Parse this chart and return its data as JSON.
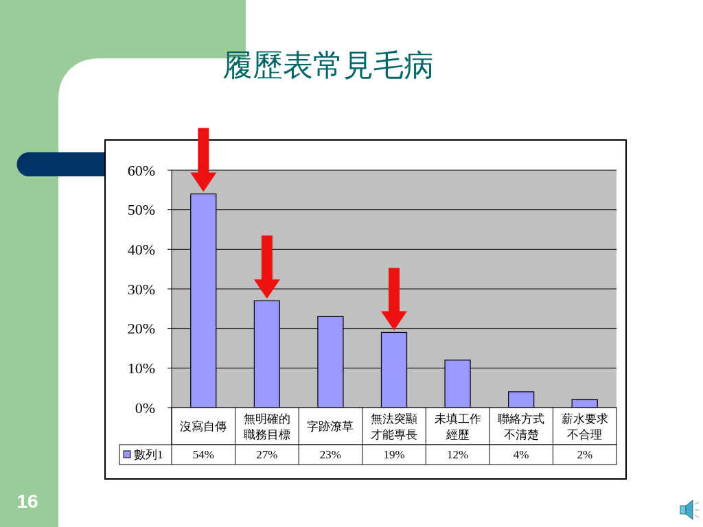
{
  "chart_data": {
    "type": "bar",
    "title": "履歷表常見毛病",
    "categories": [
      "沒寫自傳",
      "無明確的職務目標",
      "字跡潦草",
      "無法突顯才能專長",
      "未填工作經歷",
      "聯絡方式不清楚",
      "薪水要求不合理"
    ],
    "series": [
      {
        "name": "數列1",
        "color": "#9999ff",
        "values": [
          54,
          27,
          23,
          19,
          12,
          4,
          2
        ],
        "value_labels": [
          "54%",
          "27%",
          "23%",
          "19%",
          "12%",
          "4%",
          "2%"
        ]
      }
    ],
    "ylim": [
      0,
      60
    ],
    "yticks": [
      {
        "value": 0,
        "label": "0%"
      },
      {
        "value": 10,
        "label": "10%"
      },
      {
        "value": 20,
        "label": "20%"
      },
      {
        "value": 30,
        "label": "30%"
      },
      {
        "value": 40,
        "label": "40%"
      },
      {
        "value": 50,
        "label": "50%"
      },
      {
        "value": 60,
        "label": "60%"
      }
    ],
    "grid": "y",
    "legend": "bottom",
    "annotations": [
      "16"
    ]
  }
}
